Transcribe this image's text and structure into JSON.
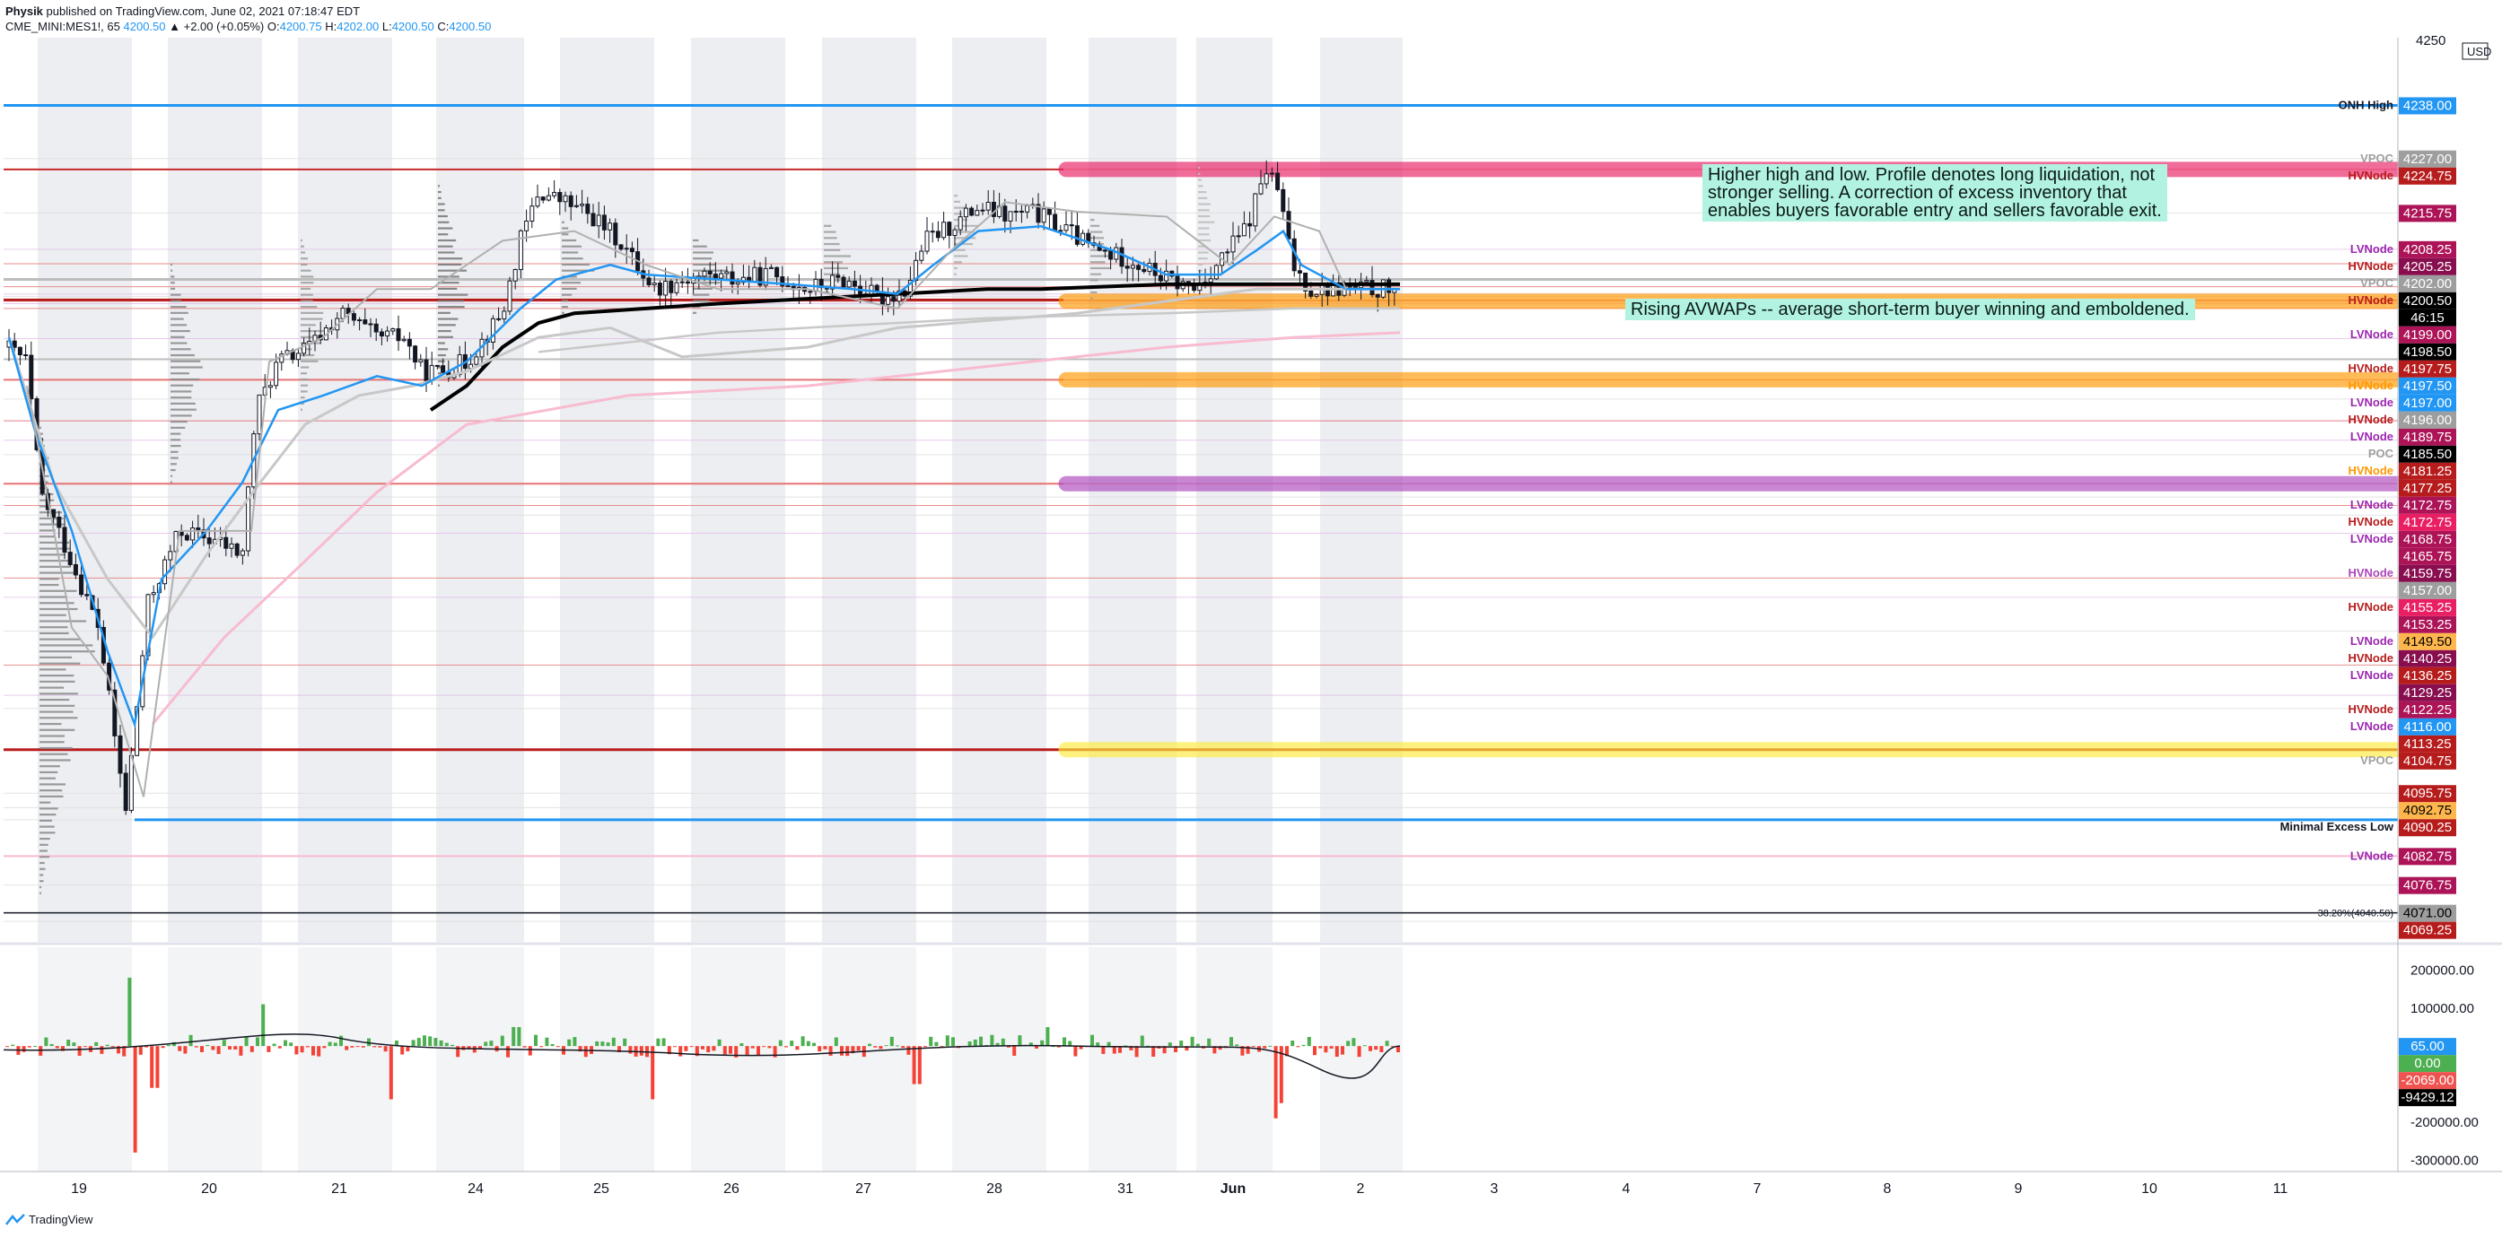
{
  "header": {
    "author": "Physik",
    "published_text": "published on TradingView.com, June 02, 2021 07:18:47 EDT",
    "symbol": "CME_MINI:MES1!, 65",
    "last": "4200.50",
    "change": "▲ +2.00 (+0.05%)",
    "ohlc": {
      "o_label": "O:",
      "o": "4200.75",
      "h_label": "H:",
      "h": "4202.00",
      "l_label": "L:",
      "l": "4200.50",
      "c_label": "C:",
      "c": "4200.50"
    }
  },
  "currency": "USD",
  "brand": "TradingView",
  "colors": {
    "accent_blue": "#2196f3",
    "hvnode_red": "#b71c1c",
    "lvnode_purple": "#9c27b0",
    "up_volume": "#4caf50",
    "down_volume": "#f44336",
    "zone_pink": "#e91e63",
    "zone_orange": "#ff9800",
    "zone_purple": "#ab47bc",
    "zone_yellow": "#ffeb3b",
    "note_bg": "#b2f2e0"
  },
  "annotations": {
    "note1": [
      "Higher high and low. Profile denotes long liquidation, not",
      "stronger selling. A correction of excess inventory that",
      "enables buyers favorable entry and sellers favorable exit."
    ],
    "note2": "Rising AVWAPs -- average short-term buyer winning and emboldened.",
    "onh_high": "ONH High",
    "minimal_excess_low": "Minimal Excess Low",
    "fib": "38.20%(4040.50)"
  },
  "chart_data": {
    "type": "candlestick",
    "price_axis": {
      "min": 4065,
      "max": 4252,
      "top_tick": "4250"
    },
    "x_ticks": [
      "19",
      "20",
      "21",
      "24",
      "25",
      "26",
      "27",
      "28",
      "31",
      "Jun",
      "2",
      "3",
      "4",
      "7",
      "8",
      "9",
      "10",
      "11"
    ],
    "price_labels": [
      {
        "price": 4238.0,
        "text": "4238.00",
        "tag": "ONH High",
        "bg": "#2196f3",
        "fg": "#ffffff",
        "tagcolor": "#131722"
      },
      {
        "price": 4227.0,
        "text": "4227.00",
        "tag": "VPOC",
        "bg": "#9e9e9e",
        "fg": "#ffffff",
        "tagcolor": "#9e9e9e"
      },
      {
        "price": 4224.75,
        "text": "4224.75",
        "tag": "HVNode",
        "bg": "#b71c1c",
        "fg": "#ffffff",
        "tagcolor": "#b71c1c"
      },
      {
        "price": 4215.75,
        "text": "4215.75",
        "tag": "",
        "bg": "#ad1457",
        "fg": "#ffffff",
        "tagcolor": ""
      },
      {
        "price": 4208.25,
        "text": "4208.25",
        "tag": "LVNode",
        "bg": "#ad1457",
        "fg": "#ffffff",
        "tagcolor": "#9c27b0"
      },
      {
        "price": 4205.25,
        "text": "4205.25",
        "tag": "HVNode",
        "bg": "#880e4f",
        "fg": "#ffffff",
        "tagcolor": "#b71c1c"
      },
      {
        "price": 4202.0,
        "text": "4202.00",
        "tag": "VPOC",
        "bg": "#9e9e9e",
        "fg": "#ffffff",
        "tagcolor": "#9e9e9e"
      },
      {
        "price": 4200.5,
        "text": "4200.50",
        "tag": "HVNode",
        "bg": "#000000",
        "fg": "#ffffff",
        "tagcolor": "#b71c1c",
        "sub": "46:15"
      },
      {
        "price": 4199.0,
        "text": "4199.00",
        "tag": "LVNode",
        "bg": "#ad1457",
        "fg": "#ffffff",
        "tagcolor": "#9c27b0"
      },
      {
        "price": 4198.5,
        "text": "4198.50",
        "tag": "",
        "bg": "#000000",
        "fg": "#ffffff",
        "tagcolor": ""
      },
      {
        "price": 4197.75,
        "text": "4197.75",
        "tag": "HVNode",
        "bg": "#b71c1c",
        "fg": "#ffffff",
        "tagcolor": "#b71c1c"
      },
      {
        "price": 4197.5,
        "text": "4197.50",
        "tag": "HVNode",
        "bg": "#2196f3",
        "fg": "#ffffff",
        "tagcolor": "#ff9800"
      },
      {
        "price": 4197.0,
        "text": "4197.00",
        "tag": "LVNode",
        "bg": "#2196f3",
        "fg": "#ffffff",
        "tagcolor": "#9c27b0"
      },
      {
        "price": 4196.0,
        "text": "4196.00",
        "tag": "HVNode",
        "bg": "#9e9e9e",
        "fg": "#ffffff",
        "tagcolor": "#b71c1c"
      },
      {
        "price": 4189.75,
        "text": "4189.75",
        "tag": "LVNode",
        "bg": "#ad1457",
        "fg": "#ffffff",
        "tagcolor": "#9c27b0"
      },
      {
        "price": 4185.5,
        "text": "4185.50",
        "tag": "POC",
        "bg": "#000000",
        "fg": "#ffffff",
        "tagcolor": "#9e9e9e"
      },
      {
        "price": 4181.25,
        "text": "4181.25",
        "tag": "HVNode",
        "bg": "#b71c1c",
        "fg": "#ffffff",
        "tagcolor": "#ff9800"
      },
      {
        "price": 4177.25,
        "text": "4177.25",
        "tag": "",
        "bg": "#b71c1c",
        "fg": "#ffffff",
        "tagcolor": ""
      },
      {
        "price": 4172.75,
        "text": "4172.75",
        "tag": "LVNode",
        "bg": "#ad1457",
        "fg": "#ffffff",
        "tagcolor": "#9c27b0"
      },
      {
        "price": 4172.75,
        "text": "4172.75",
        "tag": "HVNode",
        "bg": "#e91e63",
        "fg": "#ffffff",
        "tagcolor": "#b71c1c",
        "nudge": 1
      },
      {
        "price": 4168.75,
        "text": "4168.75",
        "tag": "LVNode",
        "bg": "#ad1457",
        "fg": "#ffffff",
        "tagcolor": "#9c27b0"
      },
      {
        "price": 4165.75,
        "text": "4165.75",
        "tag": "",
        "bg": "#ad1457",
        "fg": "#ffffff",
        "tagcolor": ""
      },
      {
        "price": 4159.75,
        "text": "4159.75",
        "tag": "HVNode",
        "bg": "#880e4f",
        "fg": "#ffffff",
        "tagcolor": "#ab47bc"
      },
      {
        "price": 4157.0,
        "text": "4157.00",
        "tag": "",
        "bg": "#9e9e9e",
        "fg": "#ffffff",
        "tagcolor": ""
      },
      {
        "price": 4155.25,
        "text": "4155.25",
        "tag": "HVNode",
        "bg": "#e91e63",
        "fg": "#ffffff",
        "tagcolor": "#b71c1c"
      },
      {
        "price": 4153.25,
        "text": "4153.25",
        "tag": "",
        "bg": "#ad1457",
        "fg": "#ffffff",
        "tagcolor": ""
      },
      {
        "price": 4149.5,
        "text": "4149.50",
        "tag": "LVNode",
        "bg": "#ffb74d",
        "fg": "#000000",
        "tagcolor": "#9c27b0"
      },
      {
        "price": 4140.25,
        "text": "4140.25",
        "tag": "HVNode",
        "bg": "#880e4f",
        "fg": "#ffffff",
        "tagcolor": "#b71c1c"
      },
      {
        "price": 4136.25,
        "text": "4136.25",
        "tag": "LVNode",
        "bg": "#b71c1c",
        "fg": "#ffffff",
        "tagcolor": "#9c27b0"
      },
      {
        "price": 4129.25,
        "text": "4129.25",
        "tag": "",
        "bg": "#880e4f",
        "fg": "#ffffff",
        "tagcolor": ""
      },
      {
        "price": 4122.25,
        "text": "4122.25",
        "tag": "HVNode",
        "bg": "#ad1457",
        "fg": "#ffffff",
        "tagcolor": "#b71c1c"
      },
      {
        "price": 4116.0,
        "text": "4116.00",
        "tag": "LVNode",
        "bg": "#2196f3",
        "fg": "#ffffff",
        "tagcolor": "#9c27b0"
      },
      {
        "price": 4113.25,
        "text": "4113.25",
        "tag": "",
        "bg": "#b71c1c",
        "fg": "#ffffff",
        "tagcolor": ""
      },
      {
        "price": 4104.75,
        "text": "4104.75",
        "tag": "VPOC",
        "bg": "#b71c1c",
        "fg": "#ffffff",
        "tagcolor": "#9e9e9e"
      },
      {
        "price": 4095.75,
        "text": "4095.75",
        "tag": "",
        "bg": "#b71c1c",
        "fg": "#ffffff",
        "tagcolor": ""
      },
      {
        "price": 4092.75,
        "text": "4092.75",
        "tag": "",
        "bg": "#ffb74d",
        "fg": "#000000",
        "tagcolor": ""
      },
      {
        "price": 4090.25,
        "text": "4090.25",
        "tag": "Minimal Excess Low",
        "bg": "#b71c1c",
        "fg": "#ffffff",
        "tagcolor": "#131722"
      },
      {
        "price": 4082.75,
        "text": "4082.75",
        "tag": "LVNode",
        "bg": "#ad1457",
        "fg": "#ffffff",
        "tagcolor": "#9c27b0"
      },
      {
        "price": 4076.75,
        "text": "4076.75",
        "tag": "",
        "bg": "#ad1457",
        "fg": "#ffffff",
        "tagcolor": ""
      },
      {
        "price": 4071.0,
        "text": "4071.00",
        "tag": "38.20%(4040.50)",
        "bg": "#9e9e9e",
        "fg": "#000000",
        "tagcolor": "#131722"
      },
      {
        "price": 4069.25,
        "text": "4069.25",
        "tag": "",
        "bg": "#b71c1c",
        "fg": "#ffffff",
        "tagcolor": ""
      }
    ],
    "volume_axis": {
      "min": -330000,
      "max": 260000,
      "ticks": [
        "200000.00",
        "100000.00",
        "0.00",
        "-200000.00",
        "-300000.00"
      ]
    },
    "volume_labels": [
      {
        "value": 65,
        "text": "65.00",
        "bg": "#2196f3",
        "fg": "#ffffff"
      },
      {
        "value": 0,
        "text": "0.00",
        "bg": "#4caf50",
        "fg": "#ffffff"
      },
      {
        "value": -2069,
        "text": "-2069.00",
        "bg": "#ef5350",
        "fg": "#ffffff"
      },
      {
        "value": -9429.12,
        "text": "-9429.12",
        "bg": "#000000",
        "fg": "#ffffff"
      }
    ]
  }
}
